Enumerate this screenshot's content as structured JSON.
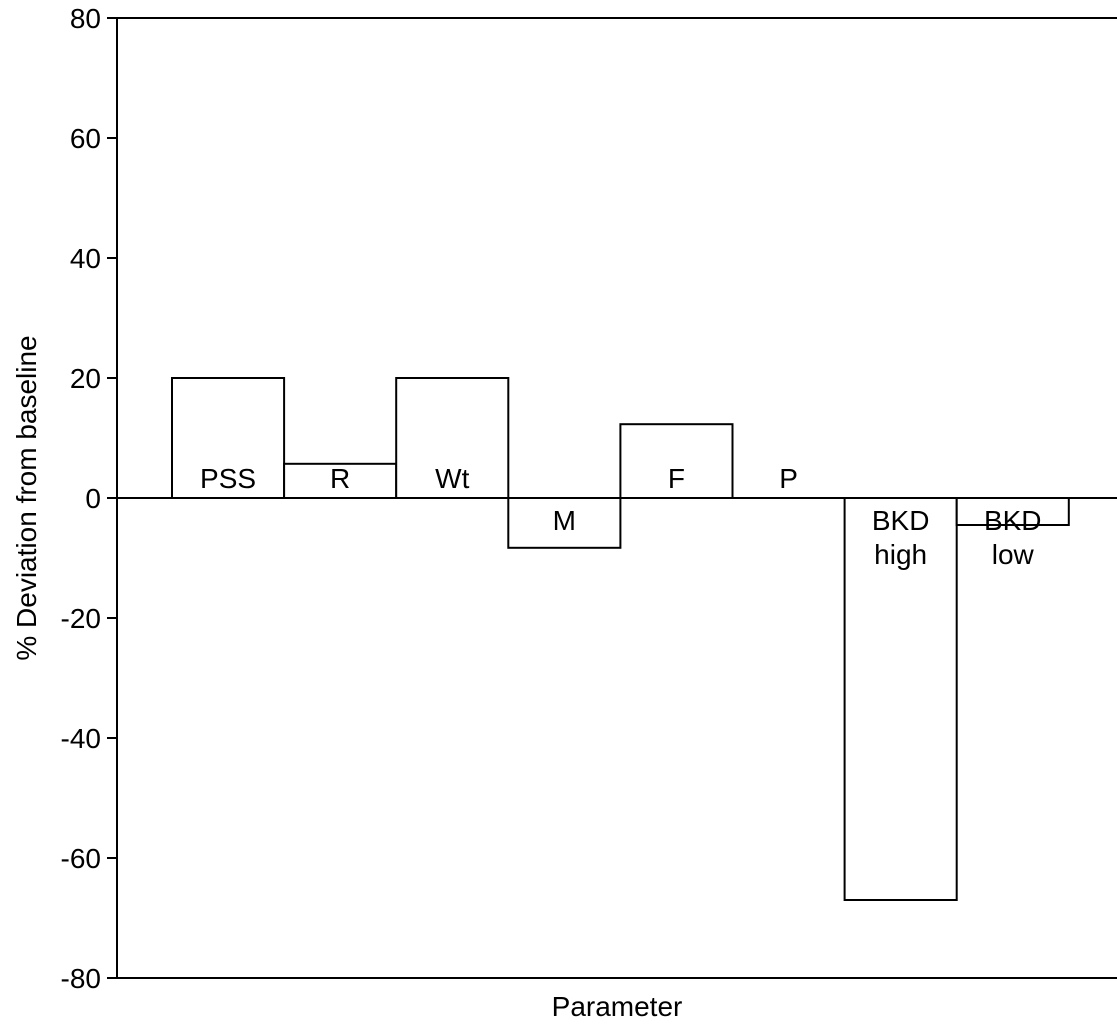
{
  "chart_data": {
    "type": "bar",
    "title": "",
    "xlabel": "Parameter",
    "ylabel": "% Deviation from baseline",
    "ylim": [
      -80,
      80
    ],
    "yticks": [
      80,
      60,
      40,
      20,
      0,
      -20,
      -40,
      -60,
      -80
    ],
    "grid": false,
    "categories": [
      "PSS",
      "R",
      "Wt",
      "M",
      "F",
      "P",
      "BKD high",
      "BKD low"
    ],
    "bar_labels": [
      [
        "PSS"
      ],
      [
        "R"
      ],
      [
        "Wt"
      ],
      [
        "M"
      ],
      [
        "F"
      ],
      [
        "P"
      ],
      [
        "BKD",
        "high"
      ],
      [
        "BKD",
        "low"
      ]
    ],
    "values": [
      20,
      5.7,
      20,
      -8.3,
      12.3,
      0,
      -67,
      -4.5
    ],
    "colors": {
      "bar_fill": "#ffffff",
      "bar_stroke": "#000000",
      "axis": "#000000",
      "text": "#000000"
    }
  }
}
